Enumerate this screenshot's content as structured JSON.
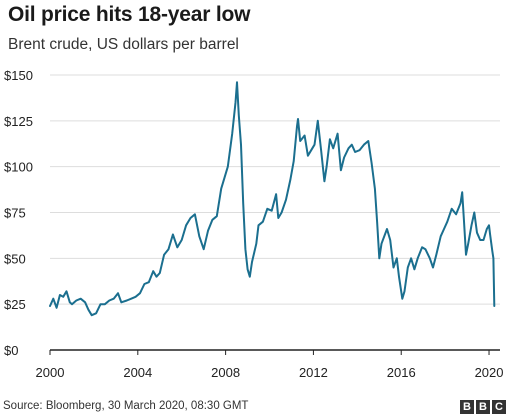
{
  "title": "Oil price hits 18-year low",
  "subtitle": "Brent crude, US dollars per barrel",
  "source": "Source: Bloomberg, 30 March 2020, 08:30 GMT",
  "logo": [
    "B",
    "B",
    "C"
  ],
  "colors": {
    "line": "#1b6f8f",
    "grid": "#dddddd",
    "axis": "#222222"
  },
  "chart_data": {
    "type": "line",
    "title": "Oil price hits 18-year low",
    "subtitle": "Brent crude, US dollars per barrel",
    "xlabel": "",
    "ylabel": "",
    "xlim": [
      2000,
      2020.5
    ],
    "ylim": [
      0,
      150
    ],
    "yticks": [
      0,
      25,
      50,
      75,
      100,
      125,
      150
    ],
    "ytick_labels": [
      "$0",
      "$25",
      "$50",
      "$75",
      "$100",
      "$125",
      "$150"
    ],
    "xticks": [
      2000,
      2004,
      2008,
      2012,
      2016,
      2020
    ],
    "xtick_labels": [
      "2000",
      "2004",
      "2008",
      "2012",
      "2016",
      "2020"
    ],
    "grid": "horizontal",
    "series": [
      {
        "values": [
          [
            2000.0,
            24
          ],
          [
            2000.15,
            28
          ],
          [
            2000.3,
            23
          ],
          [
            2000.45,
            30
          ],
          [
            2000.6,
            29
          ],
          [
            2000.75,
            32
          ],
          [
            2000.9,
            26
          ],
          [
            2001.0,
            25
          ],
          [
            2001.2,
            27
          ],
          [
            2001.4,
            28
          ],
          [
            2001.6,
            26
          ],
          [
            2001.75,
            22
          ],
          [
            2001.9,
            19
          ],
          [
            2002.1,
            20
          ],
          [
            2002.3,
            25
          ],
          [
            2002.5,
            25
          ],
          [
            2002.7,
            27
          ],
          [
            2002.9,
            28
          ],
          [
            2003.1,
            31
          ],
          [
            2003.25,
            26
          ],
          [
            2003.5,
            27
          ],
          [
            2003.7,
            28
          ],
          [
            2003.9,
            29
          ],
          [
            2004.1,
            31
          ],
          [
            2004.3,
            36
          ],
          [
            2004.5,
            37
          ],
          [
            2004.7,
            43
          ],
          [
            2004.85,
            40
          ],
          [
            2005.0,
            42
          ],
          [
            2005.2,
            52
          ],
          [
            2005.4,
            55
          ],
          [
            2005.6,
            63
          ],
          [
            2005.8,
            56
          ],
          [
            2006.0,
            60
          ],
          [
            2006.2,
            68
          ],
          [
            2006.4,
            72
          ],
          [
            2006.6,
            74
          ],
          [
            2006.8,
            62
          ],
          [
            2007.0,
            55
          ],
          [
            2007.2,
            65
          ],
          [
            2007.4,
            71
          ],
          [
            2007.6,
            73
          ],
          [
            2007.8,
            88
          ],
          [
            2007.95,
            94
          ],
          [
            2008.1,
            100
          ],
          [
            2008.3,
            118
          ],
          [
            2008.45,
            135
          ],
          [
            2008.52,
            146
          ],
          [
            2008.6,
            128
          ],
          [
            2008.7,
            112
          ],
          [
            2008.8,
            80
          ],
          [
            2008.9,
            55
          ],
          [
            2009.0,
            44
          ],
          [
            2009.1,
            40
          ],
          [
            2009.2,
            48
          ],
          [
            2009.4,
            58
          ],
          [
            2009.5,
            68
          ],
          [
            2009.7,
            70
          ],
          [
            2009.9,
            77
          ],
          [
            2010.1,
            76
          ],
          [
            2010.3,
            85
          ],
          [
            2010.4,
            72
          ],
          [
            2010.55,
            75
          ],
          [
            2010.75,
            82
          ],
          [
            2010.95,
            93
          ],
          [
            2011.1,
            103
          ],
          [
            2011.25,
            122
          ],
          [
            2011.3,
            126
          ],
          [
            2011.4,
            114
          ],
          [
            2011.6,
            117
          ],
          [
            2011.75,
            106
          ],
          [
            2011.9,
            109
          ],
          [
            2012.05,
            112
          ],
          [
            2012.2,
            125
          ],
          [
            2012.35,
            109
          ],
          [
            2012.5,
            92
          ],
          [
            2012.6,
            100
          ],
          [
            2012.75,
            115
          ],
          [
            2012.9,
            110
          ],
          [
            2013.1,
            118
          ],
          [
            2013.25,
            98
          ],
          [
            2013.4,
            105
          ],
          [
            2013.6,
            110
          ],
          [
            2013.75,
            112
          ],
          [
            2013.9,
            108
          ],
          [
            2014.1,
            109
          ],
          [
            2014.3,
            112
          ],
          [
            2014.5,
            114
          ],
          [
            2014.65,
            102
          ],
          [
            2014.8,
            88
          ],
          [
            2014.9,
            70
          ],
          [
            2015.0,
            50
          ],
          [
            2015.1,
            58
          ],
          [
            2015.35,
            66
          ],
          [
            2015.5,
            60
          ],
          [
            2015.65,
            45
          ],
          [
            2015.8,
            50
          ],
          [
            2015.9,
            40
          ],
          [
            2016.05,
            28
          ],
          [
            2016.15,
            32
          ],
          [
            2016.3,
            45
          ],
          [
            2016.45,
            50
          ],
          [
            2016.6,
            44
          ],
          [
            2016.75,
            50
          ],
          [
            2016.95,
            56
          ],
          [
            2017.1,
            55
          ],
          [
            2017.3,
            50
          ],
          [
            2017.45,
            45
          ],
          [
            2017.6,
            52
          ],
          [
            2017.8,
            62
          ],
          [
            2017.95,
            66
          ],
          [
            2018.1,
            70
          ],
          [
            2018.3,
            77
          ],
          [
            2018.5,
            74
          ],
          [
            2018.7,
            80
          ],
          [
            2018.78,
            86
          ],
          [
            2018.85,
            72
          ],
          [
            2018.95,
            52
          ],
          [
            2019.05,
            58
          ],
          [
            2019.2,
            68
          ],
          [
            2019.33,
            75
          ],
          [
            2019.45,
            64
          ],
          [
            2019.6,
            60
          ],
          [
            2019.75,
            60
          ],
          [
            2019.9,
            66
          ],
          [
            2020.0,
            68
          ],
          [
            2020.05,
            63
          ],
          [
            2020.15,
            54
          ],
          [
            2020.2,
            50
          ],
          [
            2020.24,
            24
          ]
        ]
      }
    ]
  }
}
